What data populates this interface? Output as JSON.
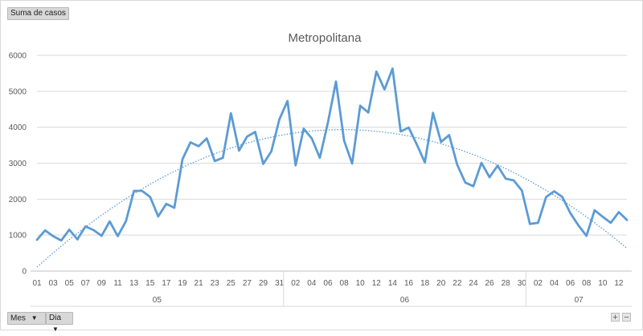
{
  "buttons": {
    "values_field": "Suma de casos",
    "month_field": "Mes",
    "day_field": "Dia"
  },
  "colors": {
    "line": "#5b9bd5",
    "trend": "#5b9bd5",
    "grid": "#d9d9d9",
    "text": "#595959"
  },
  "chart_data": {
    "type": "line",
    "title": "Metropolitana",
    "ylim": [
      0,
      6000
    ],
    "yticks": [
      0,
      1000,
      2000,
      3000,
      4000,
      5000,
      6000
    ],
    "grid": true,
    "trendline": "polynomial",
    "groups": [
      {
        "label": "05",
        "days": [
          "01",
          "02",
          "03",
          "04",
          "05",
          "06",
          "07",
          "08",
          "09",
          "10",
          "11",
          "12",
          "13",
          "14",
          "15",
          "16",
          "17",
          "18",
          "19",
          "20",
          "21",
          "22",
          "23",
          "24",
          "25",
          "26",
          "27",
          "28",
          "29",
          "30",
          "31"
        ]
      },
      {
        "label": "06",
        "days": [
          "01",
          "02",
          "03",
          "04",
          "05",
          "06",
          "07",
          "08",
          "09",
          "10",
          "11",
          "12",
          "13",
          "14",
          "15",
          "16",
          "17",
          "18",
          "19",
          "20",
          "21",
          "22",
          "23",
          "24",
          "25",
          "26",
          "27",
          "28",
          "29",
          "30"
        ]
      },
      {
        "label": "07",
        "days": [
          "01",
          "02",
          "03",
          "04",
          "05",
          "06",
          "07",
          "08",
          "09",
          "10",
          "11",
          "12",
          "13"
        ]
      }
    ],
    "series": [
      {
        "values": [
          870,
          1130,
          970,
          850,
          1150,
          880,
          1240,
          1140,
          980,
          1380,
          970,
          1380,
          2230,
          2230,
          2060,
          1520,
          1870,
          1760,
          3110,
          3580,
          3470,
          3690,
          3060,
          3150,
          4390,
          3350,
          3740,
          3870,
          2980,
          3330,
          4220,
          4730,
          2940,
          3960,
          3690,
          3150,
          4130,
          5270,
          3630,
          2990,
          4600,
          4410,
          5550,
          5050,
          5630,
          3880,
          3990,
          3520,
          3020,
          4400,
          3590,
          3780,
          2960,
          2460,
          2360,
          3010,
          2610,
          2930,
          2570,
          2520,
          2240,
          1310,
          1340,
          2060,
          2220,
          2060,
          1610,
          1270,
          980,
          1690,
          1510,
          1340,
          1640,
          1420
        ]
      }
    ]
  }
}
